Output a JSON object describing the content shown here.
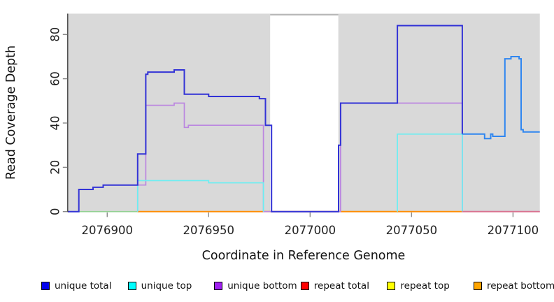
{
  "chart_data": {
    "type": "line",
    "subtype": "step-coverage-plot",
    "title": "",
    "xlabel": "Coordinate in Reference Genome",
    "ylabel": "Read Coverage Depth",
    "xlim": [
      2076880.6,
      2077113.2
    ],
    "ylim": [
      0,
      89.4
    ],
    "x_ticks": [
      2076900,
      2076950,
      2077000,
      2077050,
      2077100
    ],
    "x_tick_labels": [
      "2076900",
      "2076950",
      "2077000",
      "2077050",
      "2077100"
    ],
    "y_ticks": [
      0,
      20,
      40,
      60,
      80
    ],
    "y_tick_labels": [
      "0",
      "20",
      "40",
      "60",
      "80"
    ],
    "grid": false,
    "plot_background": "#d9d9d9",
    "masked_region": {
      "x0": 2076980.3,
      "x1": 2077013.9,
      "fill": "#ffffff",
      "border": "#999999"
    },
    "legend_position": "bottom",
    "legend": [
      {
        "label": "unique total",
        "color": "#0202f0"
      },
      {
        "label": "unique top",
        "color": "#00ffff"
      },
      {
        "label": "unique bottom",
        "color": "#a020f0"
      },
      {
        "label": "repeat total",
        "color": "#ff0000"
      },
      {
        "label": "repeat top",
        "color": "#ffff00"
      },
      {
        "label": "repeat bottom",
        "color": "#ffa500"
      }
    ],
    "series": [
      {
        "name": "unique total",
        "step_points": [
          [
            2076881,
            0
          ],
          [
            2076886,
            10
          ],
          [
            2076893,
            11
          ],
          [
            2076898,
            12
          ],
          [
            2076915,
            26
          ],
          [
            2076919,
            62
          ],
          [
            2076920,
            63
          ],
          [
            2076933,
            64
          ],
          [
            2076938,
            53
          ],
          [
            2076950,
            52
          ],
          [
            2076975,
            51
          ],
          [
            2076978,
            39
          ],
          [
            2076981,
            0
          ],
          [
            2077014,
            30
          ],
          [
            2077015,
            49
          ],
          [
            2077043,
            84
          ],
          [
            2077075,
            35
          ],
          [
            2077086,
            33
          ],
          [
            2077089,
            35
          ],
          [
            2077090,
            34
          ],
          [
            2077096,
            69
          ],
          [
            2077099,
            70
          ],
          [
            2077103,
            69
          ],
          [
            2077104,
            37
          ],
          [
            2077105,
            36
          ],
          [
            2077113,
            36
          ]
        ]
      },
      {
        "name": "unique top",
        "step_points": [
          [
            2076886,
            0
          ],
          [
            2076915,
            14
          ],
          [
            2076950,
            13
          ],
          [
            2076977,
            0
          ],
          [
            2077043,
            35
          ],
          [
            2077075,
            0
          ],
          [
            2077113,
            0
          ]
        ]
      },
      {
        "name": "unique bottom",
        "step_points": [
          [
            2076915,
            12
          ],
          [
            2076919,
            48
          ],
          [
            2076933,
            49
          ],
          [
            2076938,
            38
          ],
          [
            2076940,
            39
          ],
          [
            2076977,
            0
          ],
          [
            2077015,
            49
          ],
          [
            2077075,
            0
          ],
          [
            2077113,
            0
          ]
        ]
      },
      {
        "name": "repeat total",
        "step_points": [
          [
            2076915,
            0
          ],
          [
            2077113,
            0
          ]
        ]
      },
      {
        "name": "repeat top",
        "step_points": [
          [
            2076886,
            0
          ],
          [
            2077043,
            0
          ]
        ]
      },
      {
        "name": "repeat bottom",
        "step_points": [
          [
            2076915,
            0
          ],
          [
            2077075,
            0
          ]
        ]
      }
    ],
    "render_polylines": [
      {
        "name": "zero-line-green-left",
        "color": "#93d193",
        "width": 1.6,
        "points": [
          [
            2076886,
            0
          ],
          [
            2076915,
            0
          ]
        ]
      },
      {
        "name": "zero-line-green-right",
        "color": "#93d193",
        "width": 1.6,
        "points": [
          [
            2077014,
            0
          ],
          [
            2077043,
            0
          ]
        ]
      },
      {
        "name": "zero-line-orange",
        "color": "#ff8c00",
        "width": 1.8,
        "points": [
          [
            2076915,
            0
          ],
          [
            2077075,
            0
          ]
        ]
      },
      {
        "name": "unique-bottom-line",
        "color": "#bb86e0",
        "width": 1.7,
        "points": [
          [
            2076915,
            0
          ],
          [
            2076915,
            12
          ],
          [
            2076919,
            12
          ],
          [
            2076919,
            48
          ],
          [
            2076933,
            48
          ],
          [
            2076933,
            49
          ],
          [
            2076938,
            49
          ],
          [
            2076938,
            38
          ],
          [
            2076940,
            38
          ],
          [
            2076940,
            39
          ],
          [
            2076977,
            39
          ],
          [
            2076977,
            0
          ],
          [
            2077015,
            0
          ],
          [
            2077015,
            49
          ],
          [
            2077075,
            49
          ],
          [
            2077075,
            0
          ],
          [
            2077113.2,
            0
          ]
        ]
      },
      {
        "name": "unique-top-line-a",
        "color": "#6ceef2",
        "width": 1.7,
        "points": [
          [
            2076915,
            0
          ],
          [
            2076915,
            14
          ],
          [
            2076950,
            14
          ],
          [
            2076950,
            13
          ],
          [
            2076977,
            13
          ],
          [
            2076977,
            0
          ]
        ]
      },
      {
        "name": "unique-top-line-b",
        "color": "#6ceef2",
        "width": 1.7,
        "points": [
          [
            2077043,
            0
          ],
          [
            2077043,
            35
          ],
          [
            2077075,
            35
          ],
          [
            2077075,
            0
          ]
        ]
      },
      {
        "name": "zero-line-pink",
        "color": "#d9718f",
        "width": 1.8,
        "points": [
          [
            2077075,
            0
          ],
          [
            2077113.2,
            0
          ]
        ]
      },
      {
        "name": "unique-total-line",
        "color": "#3333d6",
        "width": 2.0,
        "points": [
          [
            2076880.6,
            0
          ],
          [
            2076886,
            0
          ],
          [
            2076886,
            10
          ],
          [
            2076893,
            10
          ],
          [
            2076893,
            11
          ],
          [
            2076898,
            11
          ],
          [
            2076898,
            12
          ],
          [
            2076915,
            12
          ],
          [
            2076915,
            26
          ],
          [
            2076919,
            26
          ],
          [
            2076919,
            62
          ],
          [
            2076920,
            62
          ],
          [
            2076920,
            63
          ],
          [
            2076933,
            63
          ],
          [
            2076933,
            64
          ],
          [
            2076938,
            64
          ],
          [
            2076938,
            53
          ],
          [
            2076950,
            53
          ],
          [
            2076950,
            52
          ],
          [
            2076975,
            52
          ],
          [
            2076975,
            51
          ],
          [
            2076978,
            51
          ],
          [
            2076978,
            39
          ],
          [
            2076981,
            39
          ],
          [
            2076981,
            0
          ],
          [
            2077014,
            0
          ],
          [
            2077014,
            30
          ],
          [
            2077015,
            30
          ],
          [
            2077015,
            49
          ],
          [
            2077043,
            49
          ],
          [
            2077043,
            84
          ],
          [
            2077075,
            84
          ],
          [
            2077075,
            35
          ]
        ]
      },
      {
        "name": "unique-total-overlap-line",
        "color": "#2f86f0",
        "width": 2.0,
        "points": [
          [
            2077075,
            35
          ],
          [
            2077086,
            35
          ],
          [
            2077086,
            33
          ],
          [
            2077089,
            33
          ],
          [
            2077089,
            35
          ],
          [
            2077090,
            35
          ],
          [
            2077090,
            34
          ],
          [
            2077096,
            34
          ],
          [
            2077096,
            69
          ],
          [
            2077099,
            69
          ],
          [
            2077099,
            70
          ],
          [
            2077103,
            70
          ],
          [
            2077103,
            69
          ],
          [
            2077104,
            69
          ],
          [
            2077104,
            37
          ],
          [
            2077105,
            37
          ],
          [
            2077105,
            36
          ],
          [
            2077113.2,
            36
          ]
        ]
      }
    ]
  }
}
